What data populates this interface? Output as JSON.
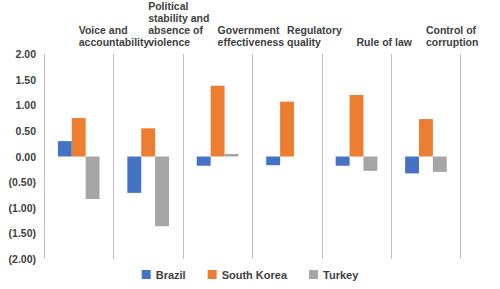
{
  "chart_data": {
    "type": "bar",
    "categories": [
      "Voice and accountability",
      "Political stability and absence of violence",
      "Government effectiveness",
      "Regulatory quality",
      "Rule of law",
      "Control of corruption"
    ],
    "series": [
      {
        "name": "Brazil",
        "color": "#4472c4",
        "values": [
          0.3,
          -0.71,
          -0.18,
          -0.17,
          -0.18,
          -0.33
        ]
      },
      {
        "name": "South Korea",
        "color": "#ed7d31",
        "values": [
          0.75,
          0.55,
          1.38,
          1.07,
          1.2,
          0.73
        ]
      },
      {
        "name": "Turkey",
        "color": "#a5a5a5",
        "values": [
          -0.83,
          -1.36,
          0.05,
          0.0,
          -0.28,
          -0.3
        ]
      }
    ],
    "ylim": [
      -2,
      2
    ],
    "yticks": [
      {
        "value": -2,
        "label": "(2.00)"
      },
      {
        "value": -1.5,
        "label": "(1.50)"
      },
      {
        "value": -1,
        "label": "(1.00)"
      },
      {
        "value": -0.5,
        "label": "(0.50)"
      },
      {
        "value": 0,
        "label": "0.00"
      },
      {
        "value": 0.5,
        "label": "0.50"
      },
      {
        "value": 1,
        "label": "1.00"
      },
      {
        "value": 1.5,
        "label": "1.50"
      },
      {
        "value": 2,
        "label": "2.00"
      }
    ],
    "grid": "x",
    "legend": "bottom"
  }
}
